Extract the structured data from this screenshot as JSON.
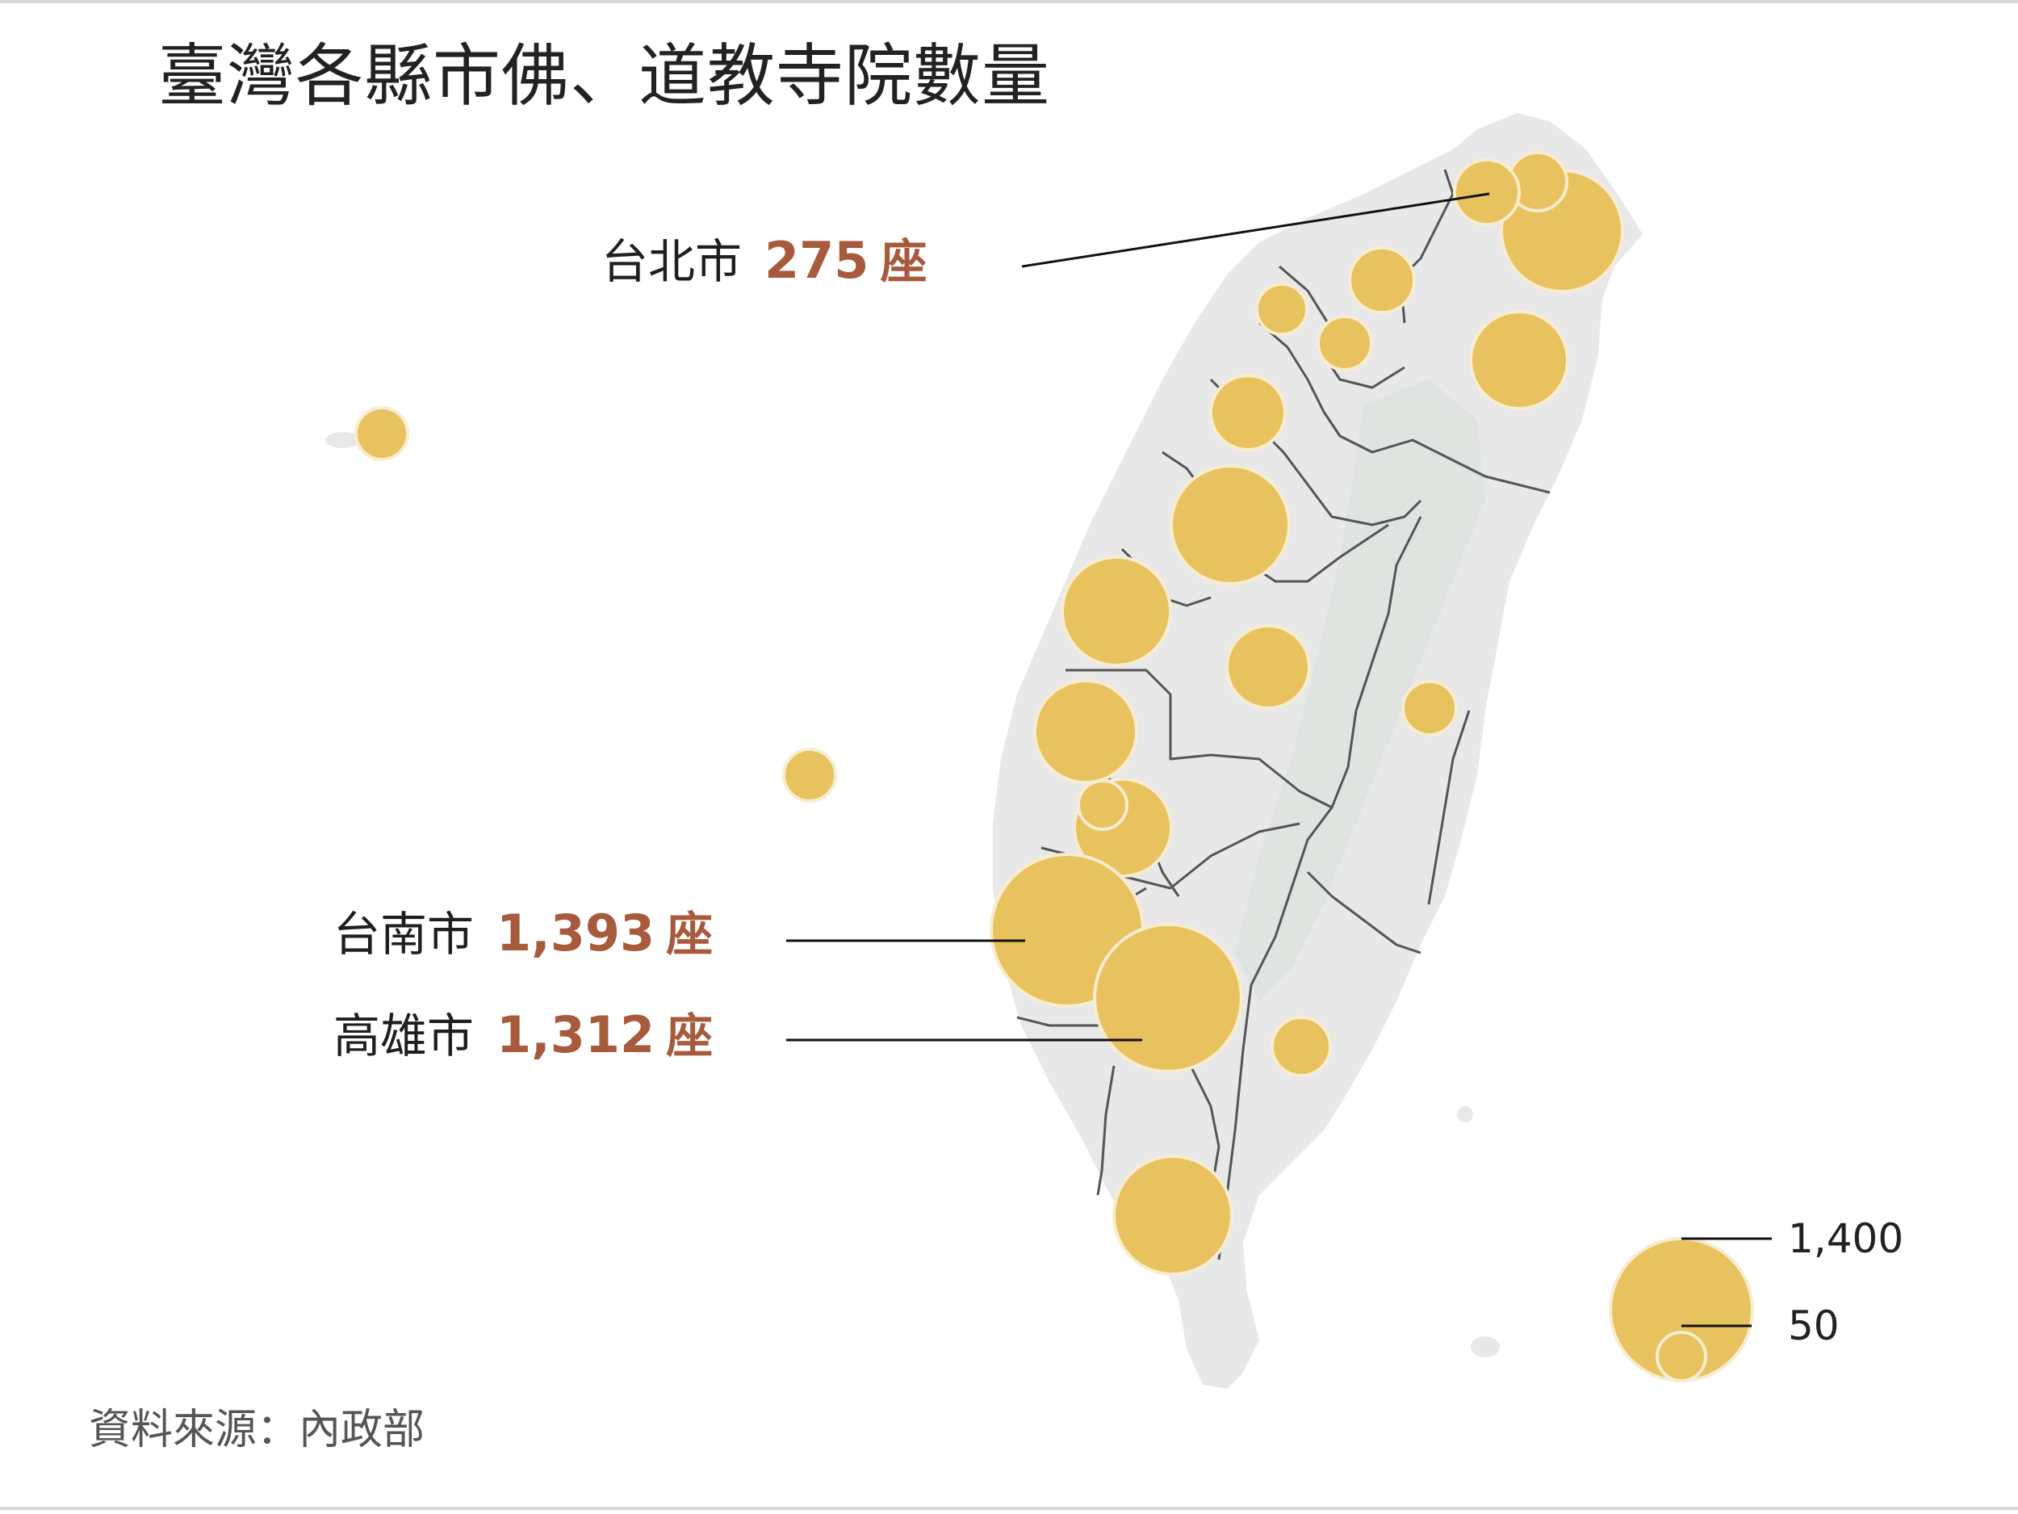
{
  "title": "臺灣各縣市佛、道教寺院數量",
  "source": "資料來源：內政部",
  "colors": {
    "bubble": "#e8c25e",
    "bubble_stroke": "#f7ecd0",
    "land": "#e8e8e8",
    "land_dark": "#dadfdb",
    "border": "#555555",
    "highlight_number": "#a85a3c",
    "text": "#222222"
  },
  "callouts": [
    {
      "key": "taipei",
      "city": "台北市",
      "count": "275",
      "unit": "座"
    },
    {
      "key": "tainan",
      "city": "台南市",
      "count": "1,393",
      "unit": "座"
    },
    {
      "key": "kaohsiung",
      "city": "高雄市",
      "count": "1,312",
      "unit": "座"
    }
  ],
  "legend": {
    "max_label": "1,400",
    "min_label": "50",
    "max_value": 1400,
    "min_value": 50
  },
  "chart_data": {
    "type": "bubble-map",
    "title": "臺灣各縣市佛、道教寺院數量",
    "size_scale": {
      "min": 50,
      "max": 1400
    },
    "labeled_values": [
      {
        "region": "台北市",
        "value": 275
      },
      {
        "region": "台南市",
        "value": 1393
      },
      {
        "region": "高雄市",
        "value": 1312
      }
    ]
  }
}
